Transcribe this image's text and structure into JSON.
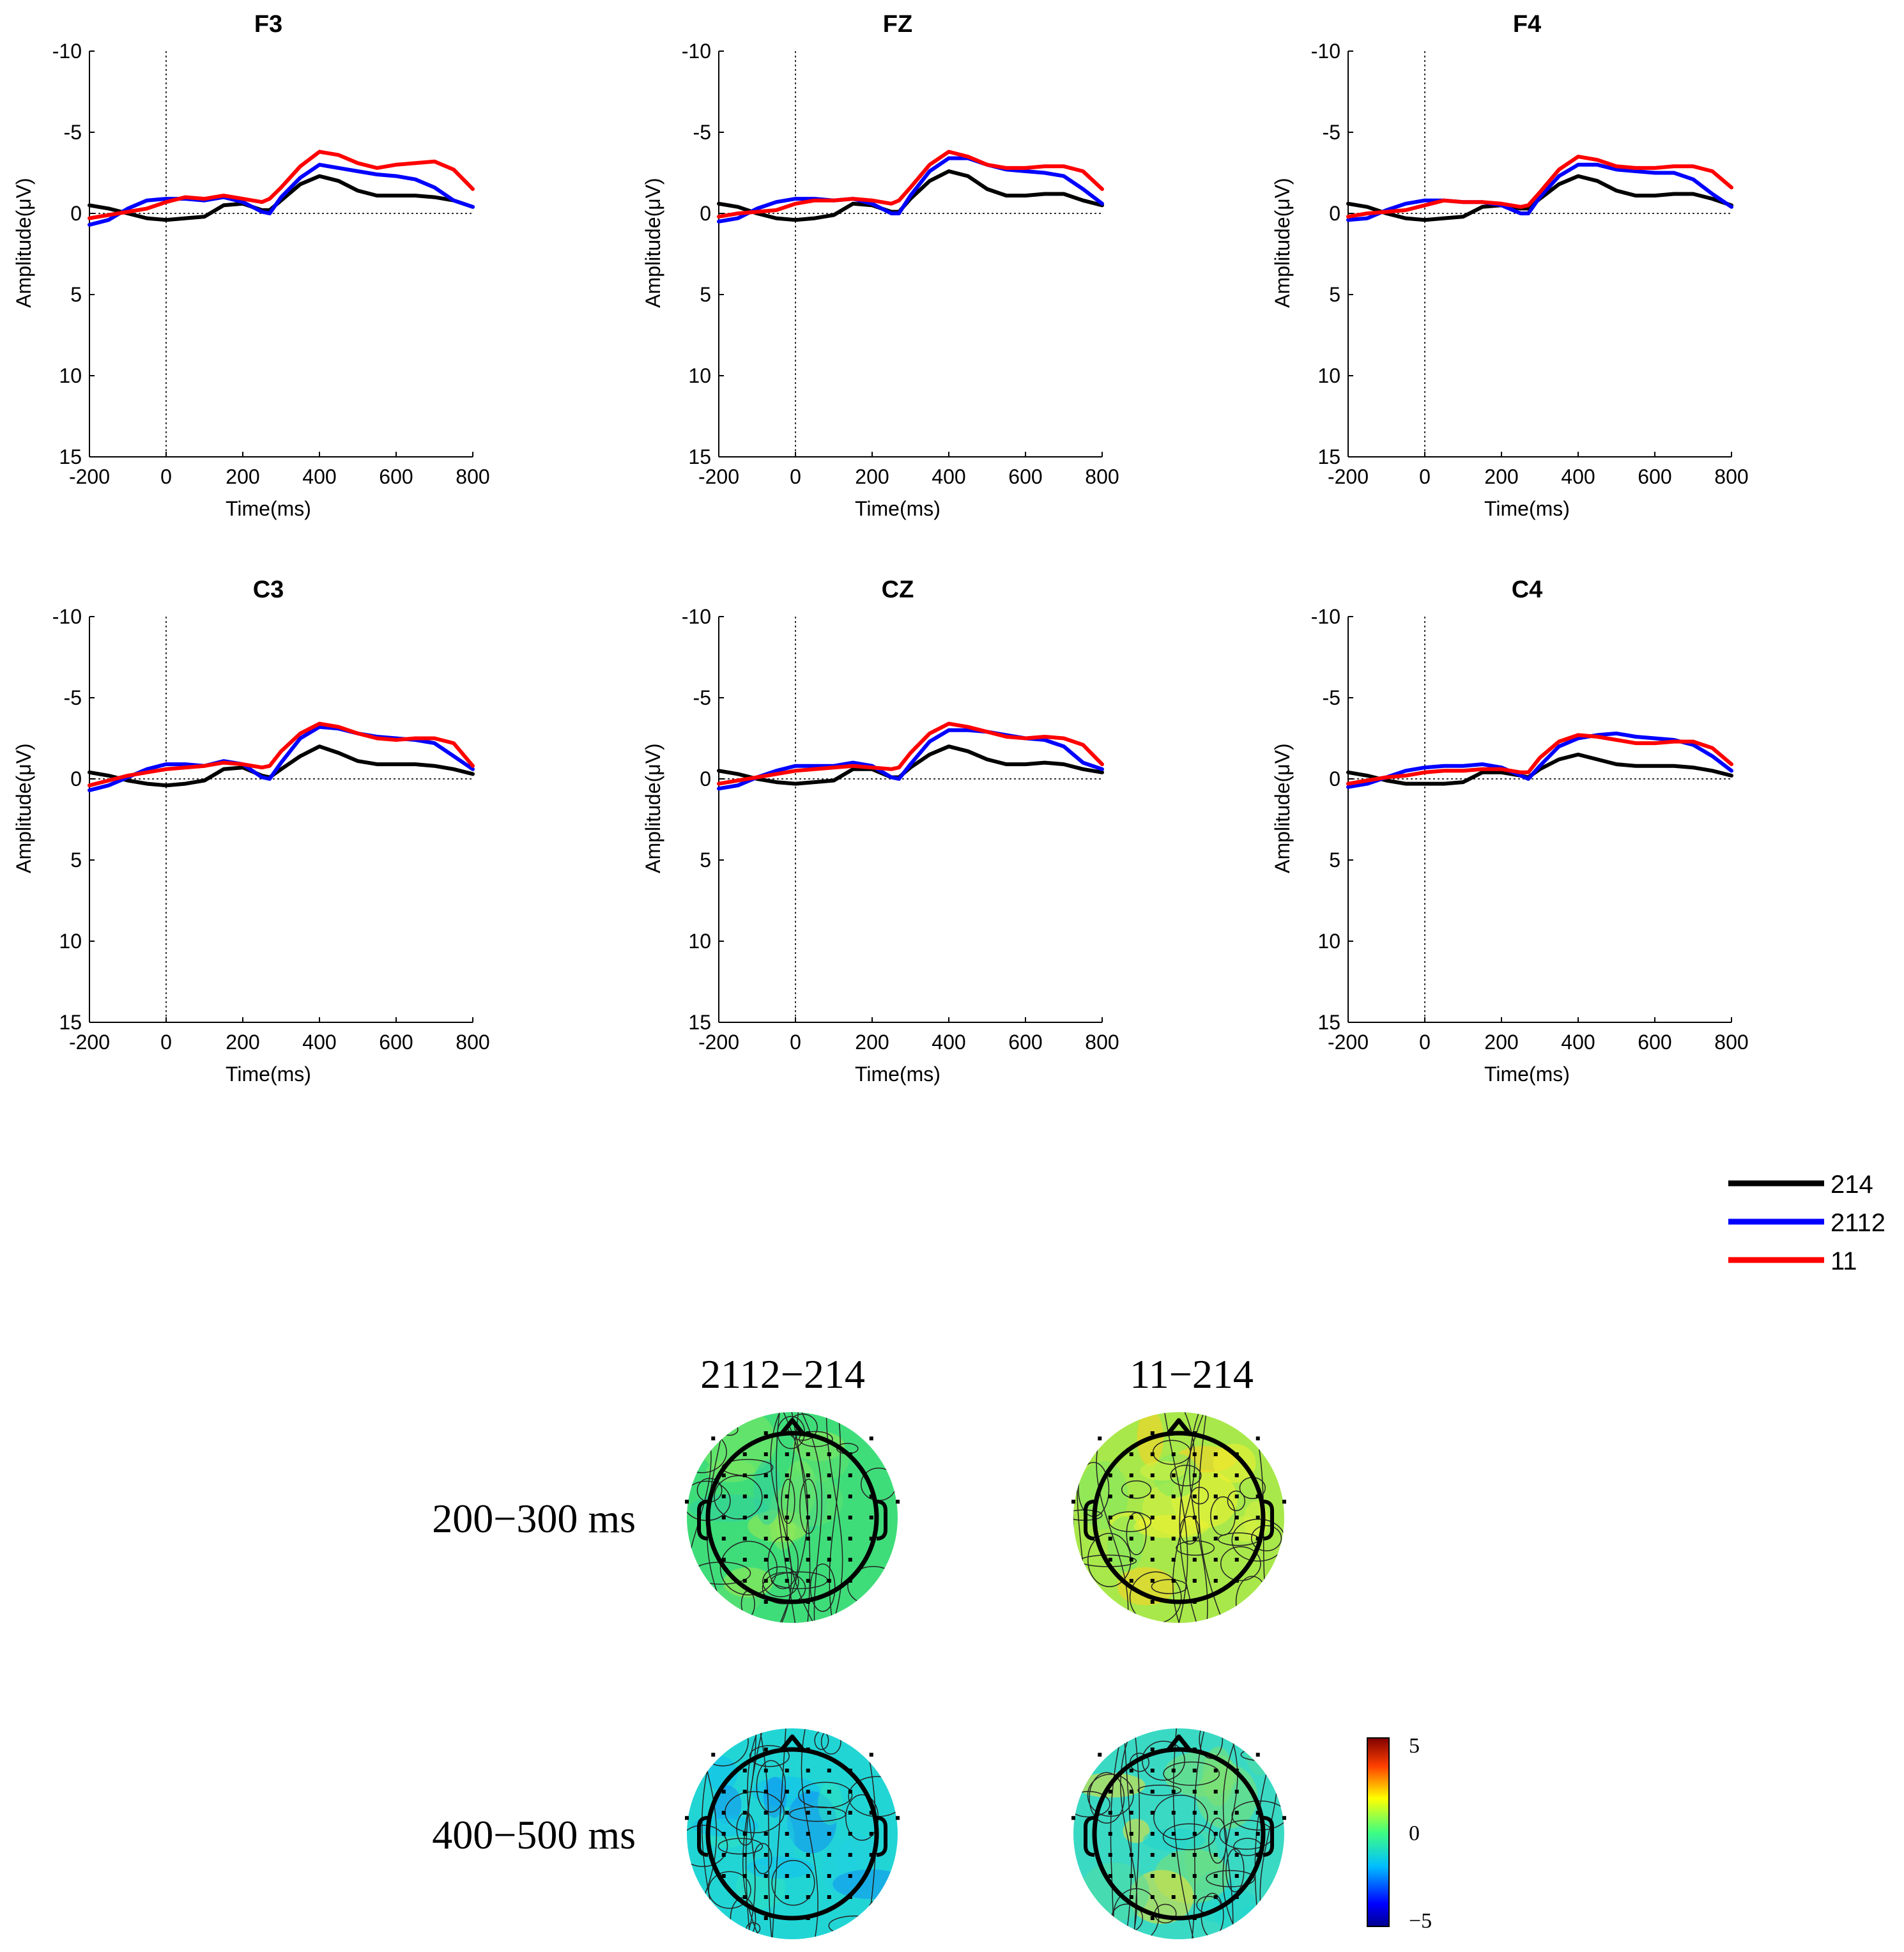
{
  "legend": [
    {
      "label": "214",
      "color": "#000000"
    },
    {
      "label": "2112",
      "color": "#0000ff"
    },
    {
      "label": "11",
      "color": "#ff0000"
    }
  ],
  "chart_data": [
    {
      "type": "line",
      "title": "F3",
      "xlabel": "Time(ms)",
      "ylabel": "Amplitude(μV)",
      "xlim": [
        -200,
        800
      ],
      "ylim": [
        -10,
        15
      ],
      "y_inverted": true,
      "xticks": [
        "-200",
        "0",
        "200",
        "400",
        "600",
        "800"
      ],
      "yticks": [
        "-10",
        "-5",
        "0",
        "5",
        "10",
        "15"
      ],
      "x": [
        -200,
        -150,
        -100,
        -50,
        0,
        50,
        100,
        150,
        200,
        250,
        270,
        300,
        350,
        400,
        450,
        500,
        550,
        600,
        650,
        700,
        750,
        800
      ],
      "series": [
        {
          "name": "214",
          "values": [
            -0.5,
            -0.3,
            0,
            0.3,
            0.4,
            0.3,
            0.2,
            -0.5,
            -0.6,
            -0.2,
            -0.2,
            -0.8,
            -1.8,
            -2.3,
            -2,
            -1.4,
            -1.1,
            -1.1,
            -1.1,
            -1,
            -0.8,
            -0.4
          ]
        },
        {
          "name": "2112",
          "values": [
            0.7,
            0.4,
            -0.3,
            -0.8,
            -0.9,
            -0.9,
            -0.8,
            -1,
            -0.7,
            -0.1,
            0,
            -1,
            -2.2,
            -3,
            -2.8,
            -2.6,
            -2.4,
            -2.3,
            -2.1,
            -1.6,
            -0.8,
            -0.4
          ]
        },
        {
          "name": "11",
          "values": [
            0.3,
            0.1,
            -0.1,
            -0.3,
            -0.7,
            -1,
            -0.9,
            -1.1,
            -0.9,
            -0.7,
            -0.9,
            -1.6,
            -2.9,
            -3.8,
            -3.6,
            -3.1,
            -2.8,
            -3,
            -3.1,
            -3.2,
            -2.7,
            -1.5
          ]
        }
      ]
    },
    {
      "type": "line",
      "title": "FZ",
      "xlabel": "Time(ms)",
      "ylabel": "Amplitude(μV)",
      "xlim": [
        -200,
        800
      ],
      "ylim": [
        -10,
        15
      ],
      "y_inverted": true,
      "xticks": [
        "-200",
        "0",
        "200",
        "400",
        "600",
        "800"
      ],
      "yticks": [
        "-10",
        "-5",
        "0",
        "5",
        "10",
        "15"
      ],
      "x": [
        -200,
        -150,
        -100,
        -50,
        0,
        50,
        100,
        150,
        200,
        250,
        270,
        300,
        350,
        400,
        450,
        500,
        550,
        600,
        650,
        700,
        750,
        800
      ],
      "series": [
        {
          "name": "214",
          "values": [
            -0.6,
            -0.4,
            0,
            0.3,
            0.4,
            0.3,
            0.1,
            -0.6,
            -0.5,
            -0.1,
            -0.1,
            -0.9,
            -2,
            -2.6,
            -2.3,
            -1.5,
            -1.1,
            -1.1,
            -1.2,
            -1.2,
            -0.8,
            -0.5
          ]
        },
        {
          "name": "2112",
          "values": [
            0.5,
            0.3,
            -0.3,
            -0.7,
            -0.9,
            -0.9,
            -0.8,
            -0.9,
            -0.6,
            0,
            0,
            -1.1,
            -2.6,
            -3.4,
            -3.4,
            -3,
            -2.7,
            -2.6,
            -2.5,
            -2.3,
            -1.5,
            -0.6
          ]
        },
        {
          "name": "11",
          "values": [
            0.2,
            0,
            -0.1,
            -0.2,
            -0.6,
            -0.8,
            -0.8,
            -0.9,
            -0.8,
            -0.6,
            -0.8,
            -1.6,
            -3,
            -3.8,
            -3.5,
            -3,
            -2.8,
            -2.8,
            -2.9,
            -2.9,
            -2.6,
            -1.5
          ]
        }
      ]
    },
    {
      "type": "line",
      "title": "F4",
      "xlabel": "Time(ms)",
      "ylabel": "Amplitude(μV)",
      "xlim": [
        -200,
        800
      ],
      "ylim": [
        -10,
        15
      ],
      "y_inverted": true,
      "xticks": [
        "-200",
        "0",
        "200",
        "400",
        "600",
        "800"
      ],
      "yticks": [
        "-10",
        "-5",
        "0",
        "5",
        "10",
        "15"
      ],
      "x": [
        -200,
        -150,
        -100,
        -50,
        0,
        50,
        100,
        150,
        200,
        250,
        270,
        300,
        350,
        400,
        450,
        500,
        550,
        600,
        650,
        700,
        750,
        800
      ],
      "series": [
        {
          "name": "214",
          "values": [
            -0.6,
            -0.4,
            0,
            0.3,
            0.4,
            0.3,
            0.2,
            -0.4,
            -0.5,
            -0.3,
            -0.3,
            -0.9,
            -1.8,
            -2.3,
            -2,
            -1.4,
            -1.1,
            -1.1,
            -1.2,
            -1.2,
            -0.9,
            -0.5
          ]
        },
        {
          "name": "2112",
          "values": [
            0.4,
            0.3,
            -0.2,
            -0.6,
            -0.8,
            -0.8,
            -0.7,
            -0.7,
            -0.5,
            0,
            0,
            -1,
            -2.3,
            -3,
            -3,
            -2.7,
            -2.6,
            -2.5,
            -2.5,
            -2.1,
            -1.2,
            -0.4
          ]
        },
        {
          "name": "11",
          "values": [
            0.2,
            0,
            -0.1,
            -0.2,
            -0.5,
            -0.8,
            -0.7,
            -0.7,
            -0.6,
            -0.4,
            -0.5,
            -1.3,
            -2.7,
            -3.5,
            -3.3,
            -2.9,
            -2.8,
            -2.8,
            -2.9,
            -2.9,
            -2.6,
            -1.6
          ]
        }
      ]
    },
    {
      "type": "line",
      "title": "C3",
      "xlabel": "Time(ms)",
      "ylabel": "Amplitude(μV)",
      "xlim": [
        -200,
        800
      ],
      "ylim": [
        -10,
        15
      ],
      "y_inverted": true,
      "xticks": [
        "-200",
        "0",
        "200",
        "400",
        "600",
        "800"
      ],
      "yticks": [
        "-10",
        "-5",
        "0",
        "5",
        "10",
        "15"
      ],
      "x": [
        -200,
        -150,
        -100,
        -50,
        0,
        50,
        100,
        150,
        200,
        250,
        270,
        300,
        350,
        400,
        450,
        500,
        550,
        600,
        650,
        700,
        750,
        800
      ],
      "series": [
        {
          "name": "214",
          "values": [
            -0.4,
            -0.2,
            0.1,
            0.3,
            0.4,
            0.3,
            0.1,
            -0.6,
            -0.7,
            -0.2,
            -0.1,
            -0.6,
            -1.4,
            -2,
            -1.6,
            -1.1,
            -0.9,
            -0.9,
            -0.9,
            -0.8,
            -0.6,
            -0.3
          ]
        },
        {
          "name": "2112",
          "values": [
            0.7,
            0.4,
            -0.1,
            -0.6,
            -0.9,
            -0.9,
            -0.8,
            -1.1,
            -0.9,
            -0.1,
            0,
            -1,
            -2.5,
            -3.2,
            -3.1,
            -2.8,
            -2.6,
            -2.5,
            -2.4,
            -2.2,
            -1.4,
            -0.6
          ]
        },
        {
          "name": "11",
          "values": [
            0.4,
            0.1,
            -0.2,
            -0.4,
            -0.6,
            -0.7,
            -0.8,
            -1,
            -0.9,
            -0.7,
            -0.8,
            -1.7,
            -2.8,
            -3.4,
            -3.2,
            -2.8,
            -2.5,
            -2.4,
            -2.5,
            -2.5,
            -2.2,
            -0.8
          ]
        }
      ]
    },
    {
      "type": "line",
      "title": "CZ",
      "xlabel": "Time(ms)",
      "ylabel": "Amplitude(μV)",
      "xlim": [
        -200,
        800
      ],
      "ylim": [
        -10,
        15
      ],
      "y_inverted": true,
      "xticks": [
        "-200",
        "0",
        "200",
        "400",
        "600",
        "800"
      ],
      "yticks": [
        "-10",
        "-5",
        "0",
        "5",
        "10",
        "15"
      ],
      "x": [
        -200,
        -150,
        -100,
        -50,
        0,
        50,
        100,
        150,
        200,
        250,
        270,
        300,
        350,
        400,
        450,
        500,
        550,
        600,
        650,
        700,
        750,
        800
      ],
      "series": [
        {
          "name": "214",
          "values": [
            -0.5,
            -0.3,
            0,
            0.2,
            0.3,
            0.2,
            0.1,
            -0.6,
            -0.6,
            -0.1,
            -0.1,
            -0.7,
            -1.5,
            -2,
            -1.7,
            -1.2,
            -0.9,
            -0.9,
            -1,
            -0.9,
            -0.6,
            -0.4
          ]
        },
        {
          "name": "2112",
          "values": [
            0.6,
            0.4,
            -0.1,
            -0.5,
            -0.8,
            -0.8,
            -0.8,
            -1,
            -0.8,
            -0.1,
            0,
            -0.9,
            -2.3,
            -3,
            -3,
            -2.9,
            -2.7,
            -2.5,
            -2.4,
            -2,
            -1,
            -0.6
          ]
        },
        {
          "name": "11",
          "values": [
            0.3,
            0.1,
            -0.1,
            -0.3,
            -0.5,
            -0.6,
            -0.7,
            -0.8,
            -0.7,
            -0.6,
            -0.7,
            -1.6,
            -2.8,
            -3.4,
            -3.2,
            -2.9,
            -2.6,
            -2.5,
            -2.6,
            -2.5,
            -2.1,
            -0.9
          ]
        }
      ]
    },
    {
      "type": "line",
      "title": "C4",
      "xlabel": "Time(ms)",
      "ylabel": "Amplitude(μV)",
      "xlim": [
        -200,
        800
      ],
      "ylim": [
        -10,
        15
      ],
      "y_inverted": true,
      "xticks": [
        "-200",
        "0",
        "200",
        "400",
        "600",
        "800"
      ],
      "yticks": [
        "-10",
        "-5",
        "0",
        "5",
        "10",
        "15"
      ],
      "x": [
        -200,
        -150,
        -100,
        -50,
        0,
        50,
        100,
        150,
        200,
        250,
        270,
        300,
        350,
        400,
        450,
        500,
        550,
        600,
        650,
        700,
        750,
        800
      ],
      "series": [
        {
          "name": "214",
          "values": [
            -0.4,
            -0.2,
            0.1,
            0.3,
            0.3,
            0.3,
            0.2,
            -0.4,
            -0.4,
            -0.2,
            -0.1,
            -0.6,
            -1.2,
            -1.5,
            -1.2,
            -0.9,
            -0.8,
            -0.8,
            -0.8,
            -0.7,
            -0.5,
            -0.2
          ]
        },
        {
          "name": "2112",
          "values": [
            0.5,
            0.3,
            -0.1,
            -0.5,
            -0.7,
            -0.8,
            -0.8,
            -0.9,
            -0.7,
            -0.2,
            0,
            -0.8,
            -2,
            -2.5,
            -2.7,
            -2.8,
            -2.6,
            -2.5,
            -2.4,
            -2.1,
            -1.4,
            -0.5
          ]
        },
        {
          "name": "11",
          "values": [
            0.3,
            0.1,
            -0.1,
            -0.2,
            -0.4,
            -0.5,
            -0.5,
            -0.6,
            -0.6,
            -0.4,
            -0.4,
            -1.3,
            -2.3,
            -2.7,
            -2.6,
            -2.4,
            -2.2,
            -2.2,
            -2.3,
            -2.3,
            -1.9,
            -0.9
          ]
        }
      ]
    }
  ],
  "topomaps": {
    "columns": [
      "2112−214",
      "11−214"
    ],
    "rows": [
      "200−300 ms",
      "400−500 ms"
    ],
    "maps": [
      {
        "row": 0,
        "col": 0,
        "base_color": "#3fdd7a",
        "mean_uV": 0.2
      },
      {
        "row": 0,
        "col": 1,
        "base_color": "#a8e84a",
        "mean_uV": 1.5
      },
      {
        "row": 1,
        "col": 0,
        "base_color": "#22d5d5",
        "mean_uV": -1.4
      },
      {
        "row": 1,
        "col": 1,
        "base_color": "#3ad9c4",
        "mean_uV": -0.6
      }
    ],
    "colorbar": {
      "min": -5,
      "max": 5,
      "ticks": [
        "5",
        "0",
        "−5"
      ],
      "colors": [
        "#00008f",
        "#0000ff",
        "#0080ff",
        "#00ffff",
        "#80ff80",
        "#ffff00",
        "#ff8000",
        "#ff0000",
        "#800000"
      ]
    }
  }
}
